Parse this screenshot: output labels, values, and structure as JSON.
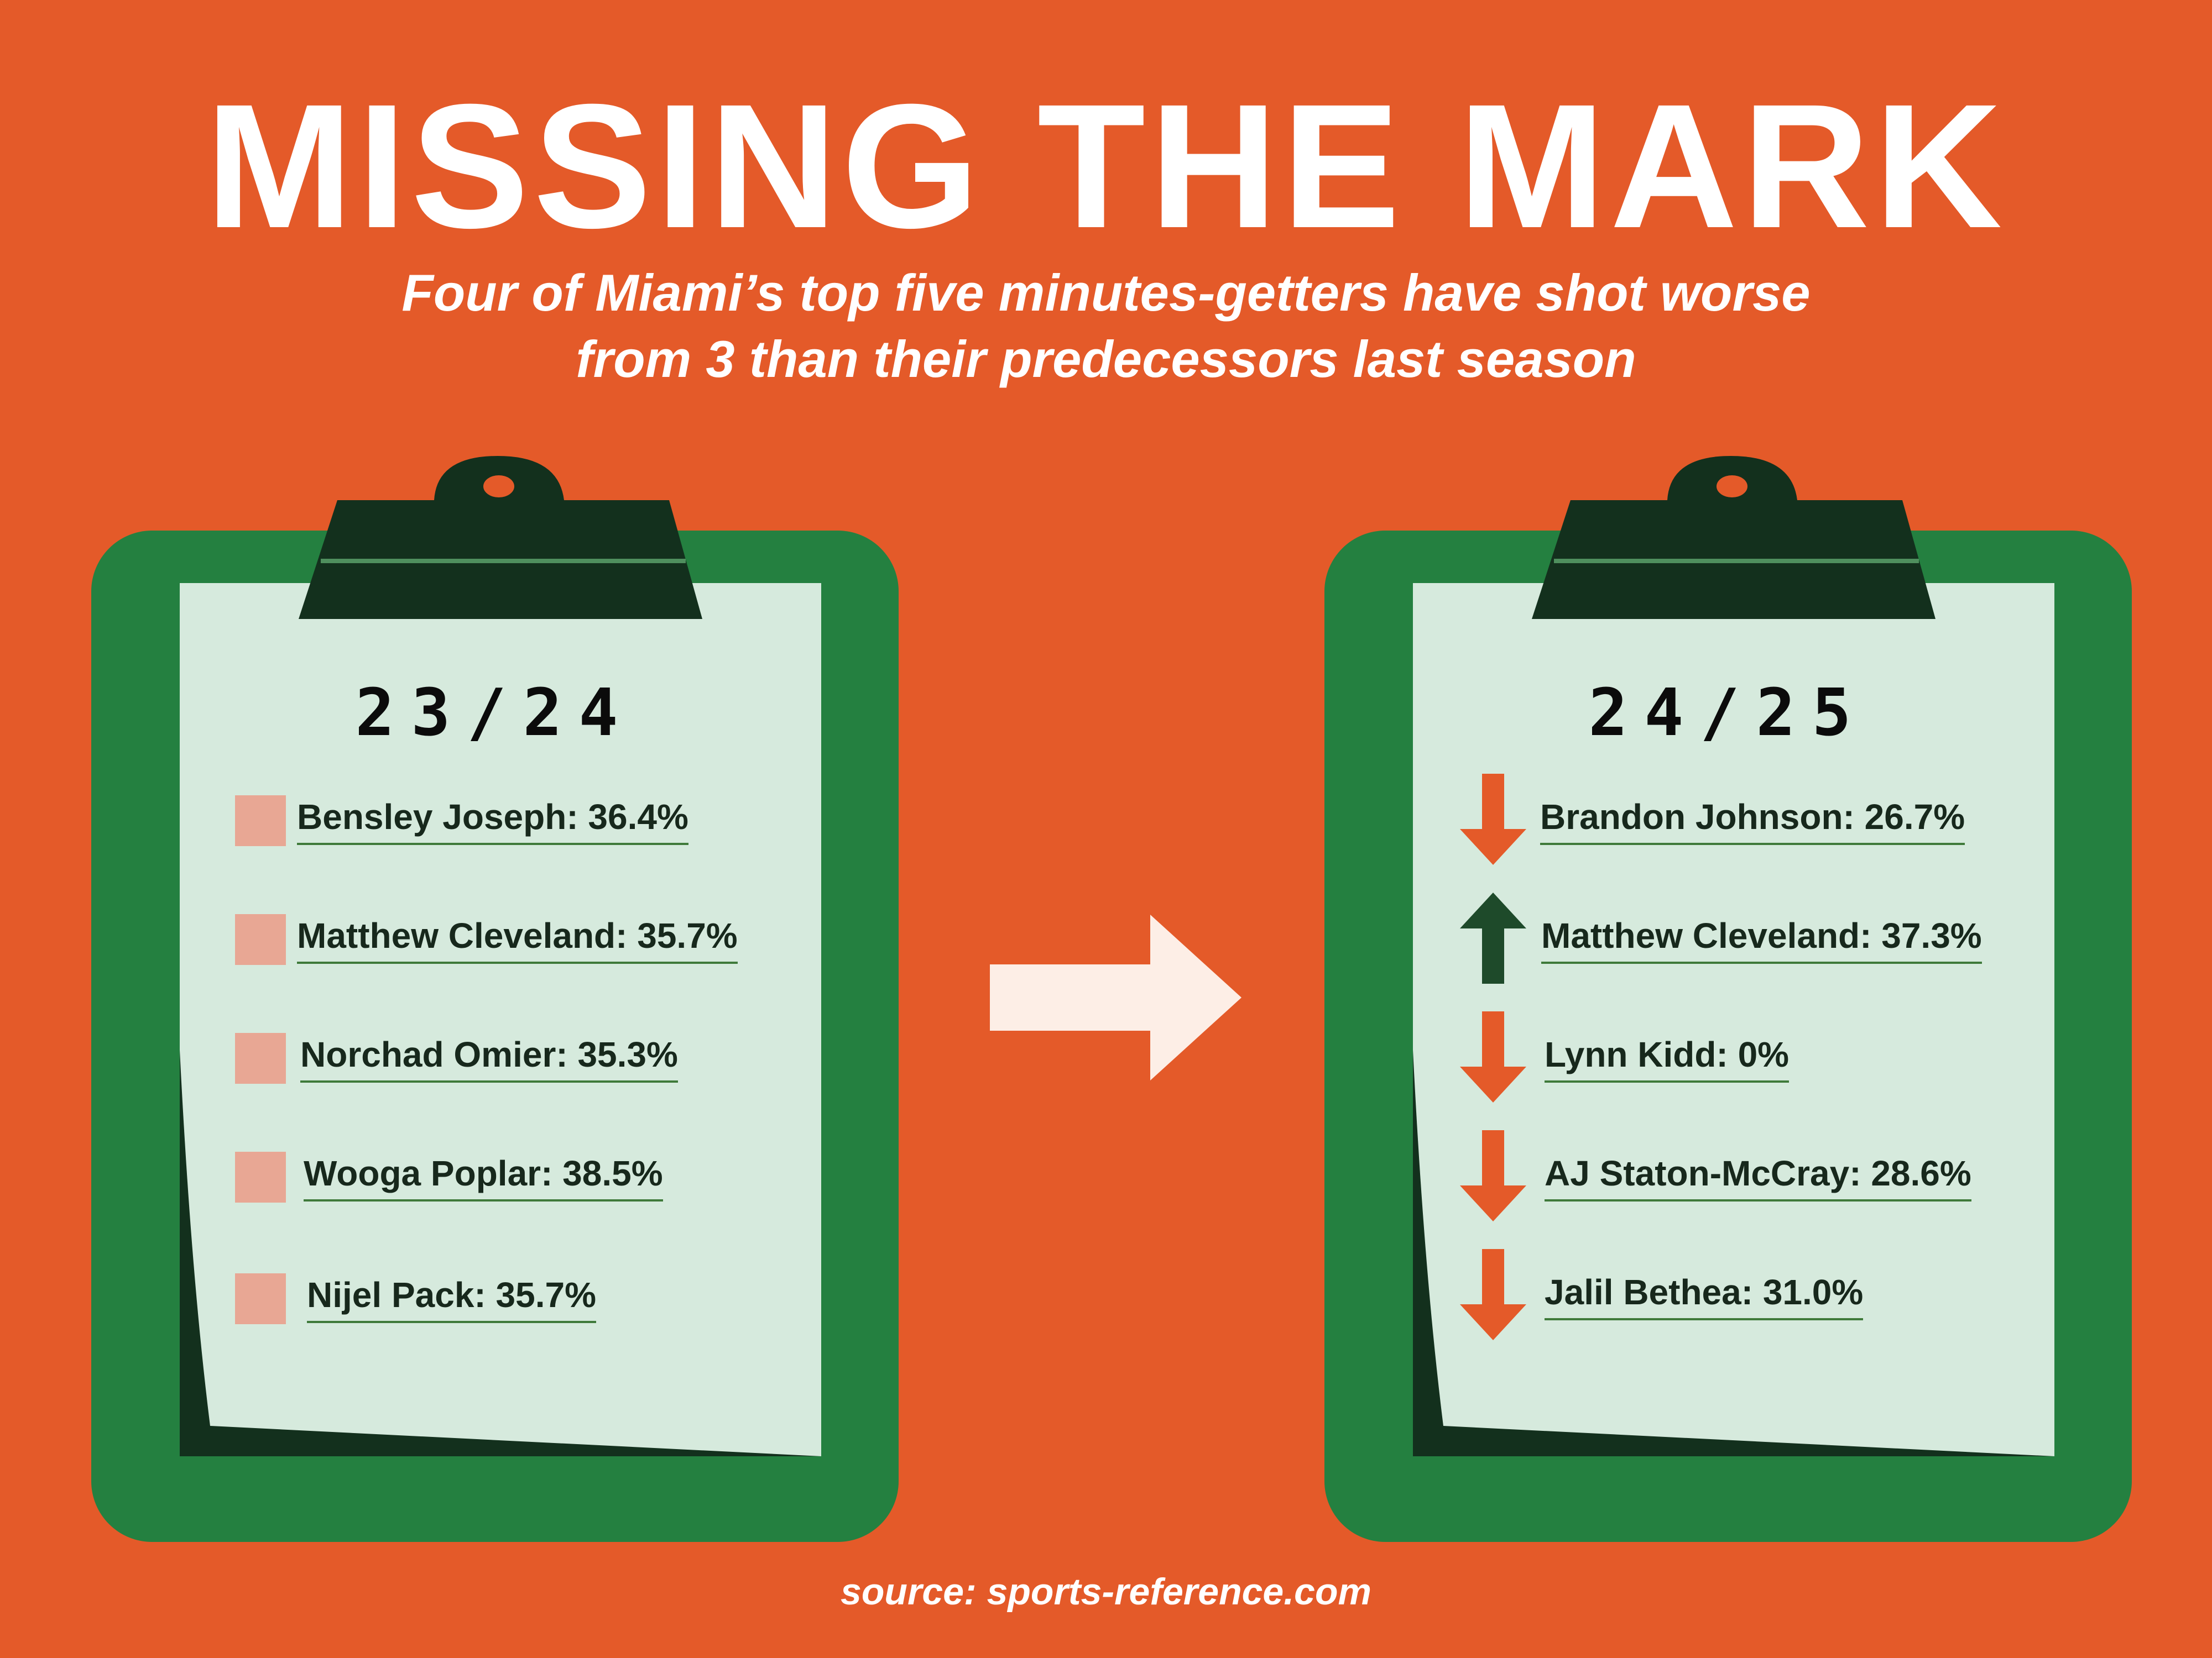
{
  "header": {
    "title": "MISSING THE MARK",
    "subtitle_line1": "Four of Miami’s top five minutes-getters have shot worse",
    "subtitle_line2": "from 3 than their predecessors last season"
  },
  "left_board": {
    "season": "23/24",
    "players": [
      {
        "label": "Bensley Joseph: 36.4%"
      },
      {
        "label": "Matthew Cleveland: 35.7%"
      },
      {
        "label": "Norchad Omier: 35.3%"
      },
      {
        "label": "Wooga Poplar: 38.5%"
      },
      {
        "label": "Nijel Pack: 35.7%"
      }
    ]
  },
  "right_board": {
    "season": "24/25",
    "players": [
      {
        "label": "Brandon Johnson: 26.7%",
        "trend": "down"
      },
      {
        "label": "Matthew Cleveland: 37.3%",
        "trend": "up"
      },
      {
        "label": "Lynn Kidd: 0%",
        "trend": "down"
      },
      {
        "label": "AJ Staton-McCray: 28.6%",
        "trend": "down"
      },
      {
        "label": "Jalil Bethea: 31.0%",
        "trend": "down"
      }
    ]
  },
  "footer": {
    "source": "source: sports-reference.com"
  },
  "colors": {
    "background": "#e45a29",
    "board_green": "#248040",
    "paper": "#d6eadd",
    "clip_dark": "#13301d",
    "down_arrow": "#e45a29",
    "up_arrow": "#1e4a2a",
    "marker_square": "#e8a794",
    "transition_arrow": "#fdeee6"
  },
  "icons": [
    "clipboard-icon",
    "arrow-right-icon",
    "arrow-down-icon",
    "arrow-up-icon"
  ]
}
